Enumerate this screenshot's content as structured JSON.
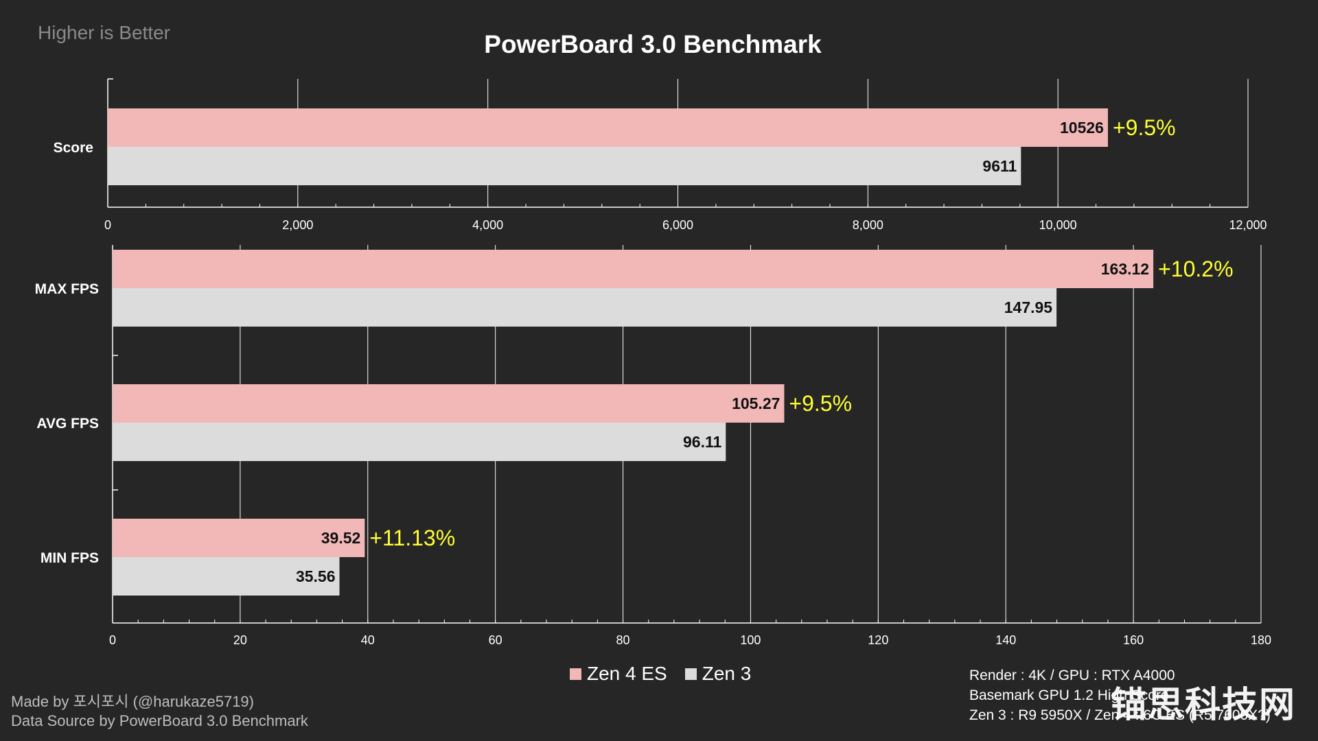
{
  "header": {
    "note": "Higher is Better"
  },
  "chart_data": [
    {
      "type": "bar",
      "orientation": "horizontal",
      "title": "PowerBoard 3.0 Benchmark",
      "categories": [
        "Score"
      ],
      "series": [
        {
          "name": "Zen 4 ES",
          "values": [
            10526
          ],
          "color": "#f2b8b8"
        },
        {
          "name": "Zen 3",
          "values": [
            9611
          ],
          "color": "#dcdcdc"
        }
      ],
      "value_labels": {
        "Zen 4 ES": [
          "10526"
        ],
        "Zen 3": [
          "9611"
        ]
      },
      "annotations": [
        "+9.5%"
      ],
      "xlim": [
        0,
        12000
      ],
      "xticks": [
        0,
        2000,
        4000,
        6000,
        8000,
        10000,
        12000
      ],
      "xtick_labels": [
        "0",
        "2,000",
        "4,000",
        "6,000",
        "8,000",
        "10,000",
        "12,000"
      ],
      "minor_ticks_per_major": 5,
      "grid": true
    },
    {
      "type": "bar",
      "orientation": "horizontal",
      "categories": [
        "MAX FPS",
        "AVG FPS",
        "MIN FPS"
      ],
      "series": [
        {
          "name": "Zen 4 ES",
          "values": [
            163.12,
            105.27,
            39.52
          ],
          "color": "#f2b8b8"
        },
        {
          "name": "Zen 3",
          "values": [
            147.95,
            96.11,
            35.56
          ],
          "color": "#dcdcdc"
        }
      ],
      "value_labels": {
        "Zen 4 ES": [
          "163.12",
          "105.27",
          "39.52"
        ],
        "Zen 3": [
          "147.95",
          "96.11",
          "35.56"
        ]
      },
      "annotations": [
        "+10.2%",
        "+9.5%",
        "+11.13%"
      ],
      "xlim": [
        0,
        180
      ],
      "xticks": [
        0,
        20,
        40,
        60,
        80,
        100,
        120,
        140,
        160,
        180
      ],
      "xtick_labels": [
        "0",
        "20",
        "40",
        "60",
        "80",
        "100",
        "120",
        "140",
        "160",
        "180"
      ],
      "minor_ticks_per_major": 5,
      "grid": true
    }
  ],
  "legend": [
    {
      "label": "Zen 4 ES",
      "color": "#f2b8b8"
    },
    {
      "label": "Zen 3",
      "color": "#dcdcdc"
    }
  ],
  "footer": {
    "made_by": "Made by 포시포시 (@harukaze5719)",
    "data_source": "Data Source by PowerBoard 3.0 Benchmark",
    "notes": [
      "Render : 4K / GPU : RTX A4000",
      "Basemark GPU 1.2 High Score",
      "Zen 3 : R9 5950X / Zen 4 : 6C ES (R5 7600X?)"
    ]
  },
  "watermark": "锚思科技网",
  "colors": {
    "background": "#262626",
    "annotation": "#ffff33",
    "grid": "#ffffff"
  }
}
